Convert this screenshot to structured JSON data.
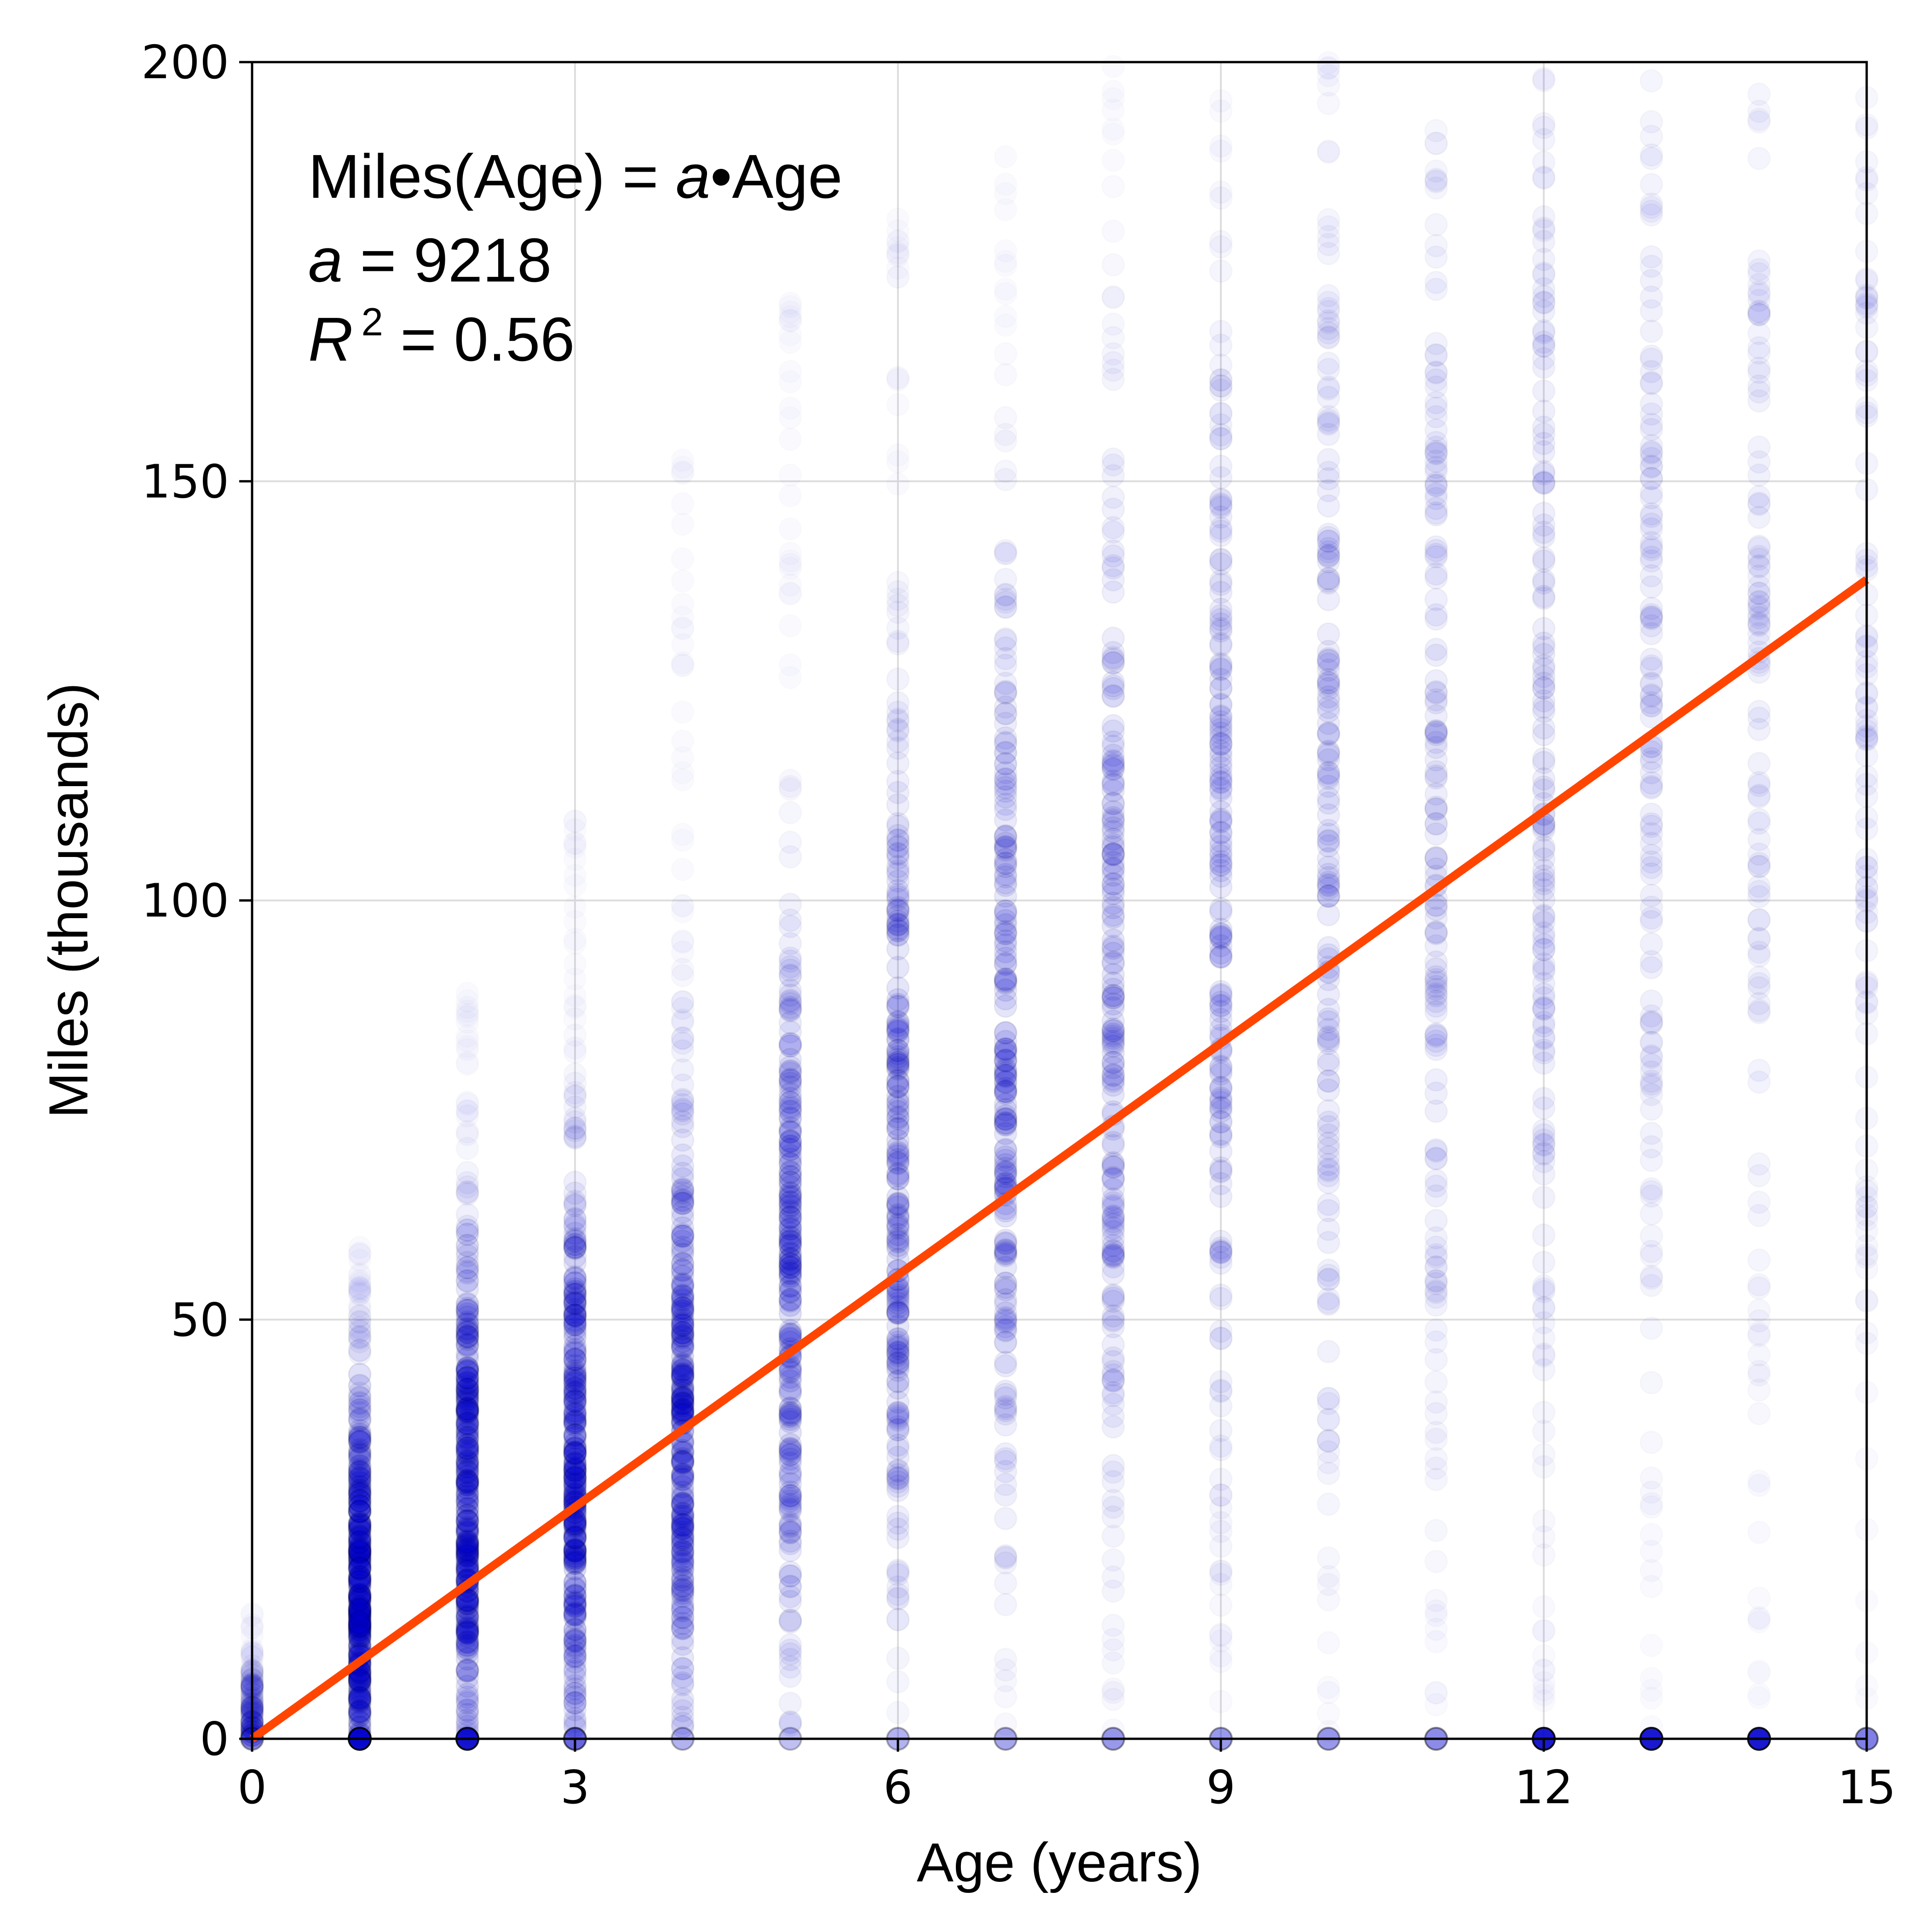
{
  "chart_data": {
    "type": "scatter",
    "xlabel": "Age (years)",
    "ylabel": "Miles (thousands)",
    "xlim": [
      0,
      15
    ],
    "ylim": [
      0,
      200
    ],
    "x_ticks": [
      "0",
      "3",
      "6",
      "9",
      "12",
      "15"
    ],
    "y_ticks": [
      "0",
      "50",
      "100",
      "150",
      "200"
    ],
    "grid": true,
    "annotation": {
      "line1_prefix": "Miles(Age) = ",
      "line1_var": "a",
      "line1_op": "•",
      "line1_suffix": "Age",
      "line2_var": "a",
      "line2_eq": " =  9218",
      "line3_var": "R",
      "line3_sup": "2",
      "line3_eq": " =  0.56"
    },
    "fit_line": {
      "slope_thousands_per_year": 9.218,
      "x_range": [
        0,
        15
      ],
      "color": "#ff4500"
    },
    "point_color": "#0000cc",
    "columns": [
      {
        "age": 0,
        "y_min": 0,
        "y_max": 15,
        "peak": 2,
        "spread": 4,
        "density": 0.35,
        "zero_alpha": 0.35
      },
      {
        "age": 1,
        "y_min": 0,
        "y_max": 60,
        "peak": 18,
        "spread": 12,
        "density": 1.0,
        "zero_alpha": 0.95
      },
      {
        "age": 2,
        "y_min": 0,
        "y_max": 90,
        "peak": 28,
        "spread": 16,
        "density": 0.95,
        "zero_alpha": 0.9
      },
      {
        "age": 3,
        "y_min": 0,
        "y_max": 110,
        "peak": 32,
        "spread": 18,
        "density": 0.9,
        "zero_alpha": 0.6
      },
      {
        "age": 4,
        "y_min": 0,
        "y_max": 155,
        "peak": 38,
        "spread": 20,
        "density": 0.85,
        "zero_alpha": 0.3
      },
      {
        "age": 5,
        "y_min": 0,
        "y_max": 175,
        "peak": 52,
        "spread": 24,
        "density": 0.75,
        "zero_alpha": 0.25
      },
      {
        "age": 6,
        "y_min": 0,
        "y_max": 185,
        "peak": 70,
        "spread": 28,
        "density": 0.7,
        "zero_alpha": 0.3
      },
      {
        "age": 7,
        "y_min": 0,
        "y_max": 200,
        "peak": 80,
        "spread": 32,
        "density": 0.65,
        "zero_alpha": 0.35
      },
      {
        "age": 8,
        "y_min": 0,
        "y_max": 200,
        "peak": 90,
        "spread": 36,
        "density": 0.6,
        "zero_alpha": 0.4
      },
      {
        "age": 9,
        "y_min": 0,
        "y_max": 200,
        "peak": 100,
        "spread": 38,
        "density": 0.55,
        "zero_alpha": 0.4
      },
      {
        "age": 10,
        "y_min": 0,
        "y_max": 200,
        "peak": 105,
        "spread": 42,
        "density": 0.5,
        "zero_alpha": 0.4
      },
      {
        "age": 11,
        "y_min": 0,
        "y_max": 200,
        "peak": 110,
        "spread": 45,
        "density": 0.45,
        "zero_alpha": 0.45
      },
      {
        "age": 12,
        "y_min": 0,
        "y_max": 200,
        "peak": 120,
        "spread": 48,
        "density": 0.45,
        "zero_alpha": 0.9
      },
      {
        "age": 13,
        "y_min": 0,
        "y_max": 200,
        "peak": 125,
        "spread": 50,
        "density": 0.4,
        "zero_alpha": 0.9
      },
      {
        "age": 14,
        "y_min": 0,
        "y_max": 200,
        "peak": 125,
        "spread": 52,
        "density": 0.35,
        "zero_alpha": 0.9
      },
      {
        "age": 15,
        "y_min": 0,
        "y_max": 200,
        "peak": 130,
        "spread": 55,
        "density": 0.3,
        "zero_alpha": 0.5
      }
    ]
  }
}
